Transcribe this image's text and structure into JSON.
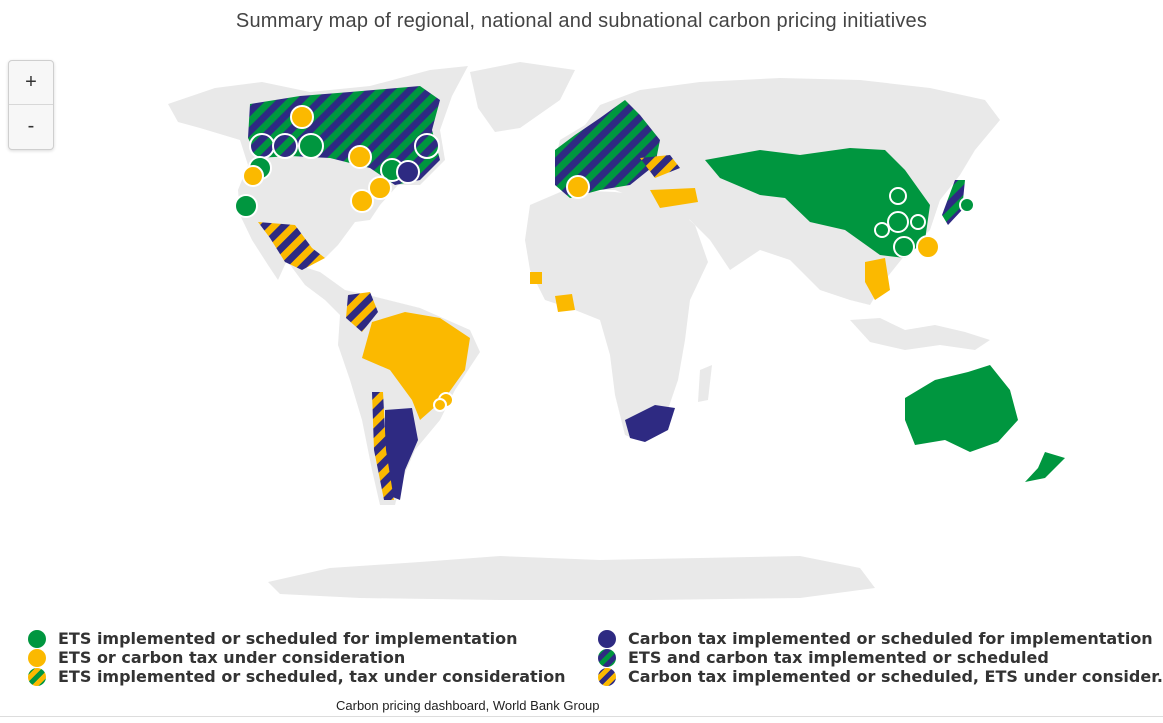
{
  "title": "Summary map of regional, national and subnational carbon pricing initiatives",
  "zoom": {
    "in_label": "+",
    "out_label": "-"
  },
  "colors": {
    "land": "#e9e9e9",
    "ets": "#00963f",
    "under_consideration": "#fbb900",
    "carbon_tax": "#2e2a82",
    "ocean": "#ffffff"
  },
  "legend": [
    {
      "label": "ETS implemented or scheduled for implementation",
      "style": "ets",
      "icon": "solid-green-dot-icon"
    },
    {
      "label": "ETS or carbon tax under consideration",
      "style": "consideration",
      "icon": "solid-yellow-dot-icon"
    },
    {
      "label": "ETS implemented or scheduled, tax under consideration",
      "style": "ets-tax-consideration",
      "icon": "green-yellow-striped-dot-icon"
    },
    {
      "label": "Carbon tax implemented or scheduled for implementation",
      "style": "tax",
      "icon": "solid-navy-dot-icon"
    },
    {
      "label": "ETS and carbon tax implemented or scheduled",
      "style": "ets-and-tax",
      "icon": "green-navy-striped-dot-icon"
    },
    {
      "label": "Carbon tax implemented or scheduled, ETS under consider...",
      "style": "tax-ets-consideration",
      "icon": "navy-yellow-striped-dot-icon"
    }
  ],
  "credit": "Carbon pricing dashboard, World Bank Group"
}
